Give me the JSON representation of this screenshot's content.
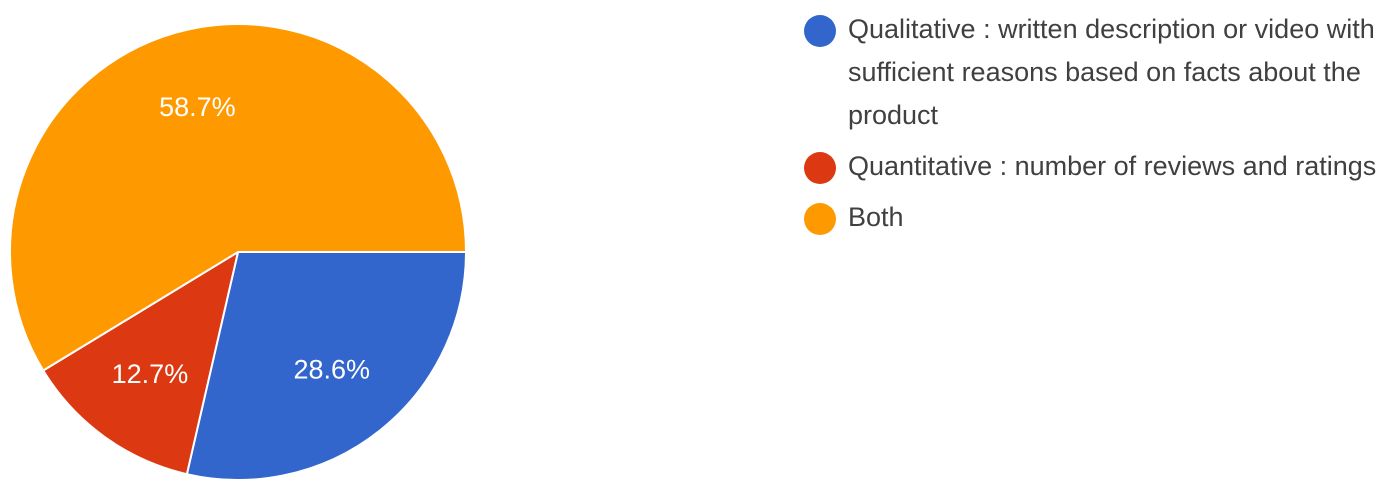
{
  "chart_data": {
    "type": "pie",
    "title": "",
    "slices": [
      {
        "name": "Qualitative : written description or video with sufficient reasons based on facts about the product",
        "value": 28.6,
        "label": "28.6%",
        "color": "#3366cc"
      },
      {
        "name": "Quantitative : number of reviews and ratings",
        "value": 12.7,
        "label": "12.7%",
        "color": "#dc3912"
      },
      {
        "name": "Both",
        "value": 58.7,
        "label": "58.7%",
        "color": "#ff9900"
      }
    ],
    "start_angle_deg": 90,
    "direction": "clockwise",
    "legend_position": "right"
  }
}
